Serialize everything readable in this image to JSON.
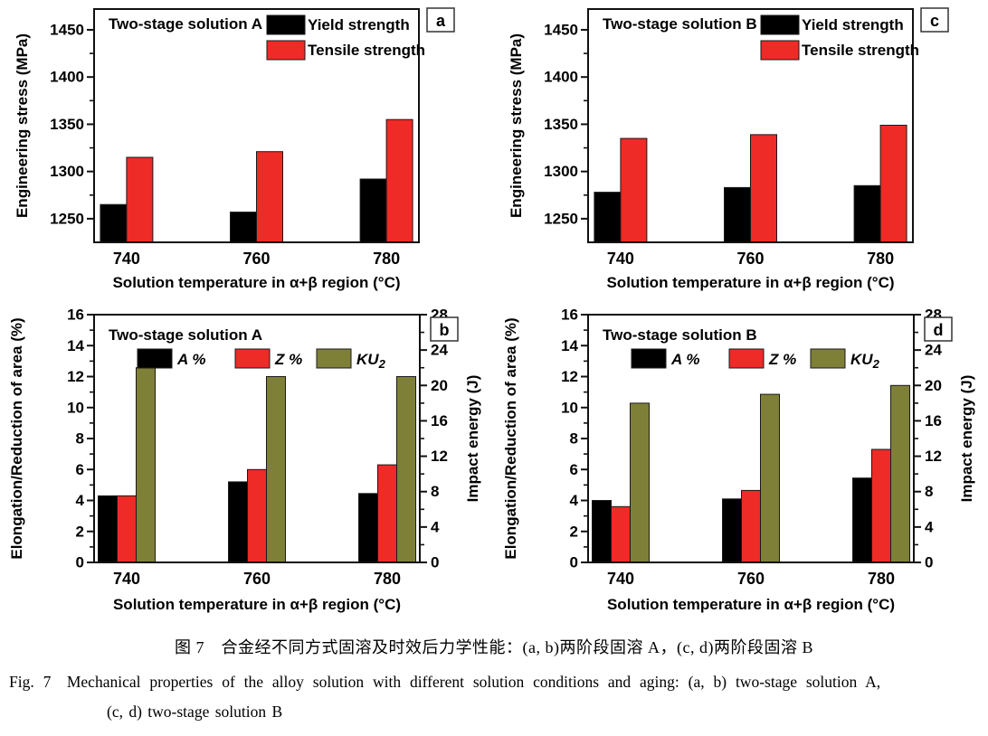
{
  "figure": {
    "caption_zh": "图 7　合金经不同方式固溶及时效后力学性能：(a, b)两阶段固溶 A，(c, d)两阶段固溶 B",
    "caption_en_line1": "Fig. 7　Mechanical properties of the alloy solution with different solution conditions and aging: (a, b) two-stage solution A,",
    "caption_en_line2": "(c, d) two-stage solution B"
  },
  "colors": {
    "black": "#000000",
    "red": "#ee2b26",
    "dark_yellow": "#7f8038",
    "axis": "#111111",
    "bar_edge": "#1a1a1a"
  },
  "chart_data": [
    {
      "id": "a",
      "type": "bar",
      "panel_label": "a",
      "title": "Two-stage solution A",
      "xlabel": "Solution temperature in α+β region (°C)",
      "ylabel": "Engineering stress (MPa)",
      "categories": [
        "740",
        "760",
        "780"
      ],
      "ylim": [
        1225,
        1472
      ],
      "yticks": [
        1250,
        1300,
        1350,
        1400,
        1450
      ],
      "y_minor_step": 25,
      "grid": "off",
      "legend_layout": "stacked",
      "legend_position": "top-inside",
      "series": [
        {
          "name": "Yield strength",
          "color": "black",
          "axis": "left",
          "values": [
            1265,
            1257,
            1292
          ]
        },
        {
          "name": "Tensile strength",
          "color": "red",
          "axis": "left",
          "values": [
            1315,
            1321,
            1355
          ]
        }
      ]
    },
    {
      "id": "c",
      "type": "bar",
      "panel_label": "c",
      "title": "Two-stage solution B",
      "xlabel": "Solution temperature in α+β region (°C)",
      "ylabel": "Engineering stress (MPa)",
      "categories": [
        "740",
        "760",
        "780"
      ],
      "ylim": [
        1225,
        1472
      ],
      "yticks": [
        1250,
        1300,
        1350,
        1400,
        1450
      ],
      "y_minor_step": 25,
      "grid": "off",
      "legend_layout": "stacked",
      "legend_position": "top-inside",
      "series": [
        {
          "name": "Yield strength",
          "color": "black",
          "axis": "left",
          "values": [
            1278,
            1283,
            1285
          ]
        },
        {
          "name": "Tensile strength",
          "color": "red",
          "axis": "left",
          "values": [
            1335,
            1339,
            1349
          ]
        }
      ]
    },
    {
      "id": "b",
      "type": "bar",
      "panel_label": "b",
      "title": "Two-stage solution A",
      "xlabel": "Solution temperature in α+β region (°C)",
      "ylabel": "Elongation/Reduction of area (%)",
      "y2label": "Impact energy (J)",
      "categories": [
        "740",
        "760",
        "780"
      ],
      "ylim": [
        0,
        16
      ],
      "yticks": [
        0,
        2,
        4,
        6,
        8,
        10,
        12,
        14,
        16
      ],
      "y_minor_step": 1,
      "y2lim": [
        0,
        28
      ],
      "y2ticks": [
        0,
        4,
        8,
        12,
        16,
        20,
        24,
        28
      ],
      "y2_minor_step": 2,
      "grid": "off",
      "legend_layout": "row",
      "legend_position": "top-inside",
      "series": [
        {
          "name": "A %",
          "italic": true,
          "color": "black",
          "axis": "left",
          "values": [
            4.3,
            5.2,
            4.45
          ]
        },
        {
          "name": "Z %",
          "italic": true,
          "color": "red",
          "axis": "left",
          "values": [
            4.3,
            6.0,
            6.3
          ]
        },
        {
          "name": "KU",
          "sub": "2",
          "italic": true,
          "color": "dark_yellow",
          "axis": "right",
          "values": [
            22,
            21,
            21
          ]
        }
      ]
    },
    {
      "id": "d",
      "type": "bar",
      "panel_label": "d",
      "title": "Two-stage solution B",
      "xlabel": "Solution temperature in α+β region (°C)",
      "ylabel": "Elongation/Reduction of area (%)",
      "y2label": "Impact energy (J)",
      "categories": [
        "740",
        "760",
        "780"
      ],
      "ylim": [
        0,
        16
      ],
      "yticks": [
        0,
        2,
        4,
        6,
        8,
        10,
        12,
        14,
        16
      ],
      "y_minor_step": 1,
      "y2lim": [
        0,
        28
      ],
      "y2ticks": [
        0,
        4,
        8,
        12,
        16,
        20,
        24,
        28
      ],
      "y2_minor_step": 2,
      "grid": "off",
      "legend_layout": "row",
      "legend_position": "top-inside",
      "series": [
        {
          "name": "A %",
          "italic": true,
          "color": "black",
          "axis": "left",
          "values": [
            4.0,
            4.1,
            5.45
          ]
        },
        {
          "name": "Z %",
          "italic": true,
          "color": "red",
          "axis": "left",
          "values": [
            3.6,
            4.65,
            7.3
          ]
        },
        {
          "name": "KU",
          "sub": "2",
          "italic": true,
          "color": "dark_yellow",
          "axis": "right",
          "values": [
            18,
            19,
            20
          ]
        }
      ]
    }
  ]
}
